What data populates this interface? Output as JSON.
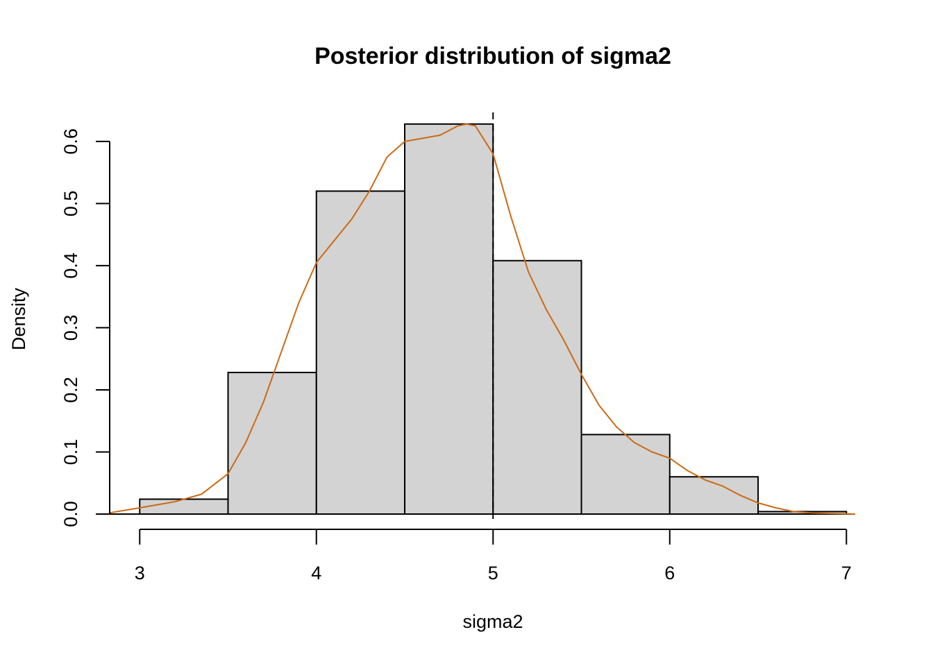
{
  "chart_data": {
    "type": "bar",
    "title": "Posterior distribution of sigma2",
    "xlabel": "sigma2",
    "ylabel": "Density",
    "xlim": [
      2.83,
      7.05
    ],
    "ylim": [
      0,
      0.63
    ],
    "xticks": [
      "3",
      "4",
      "5",
      "6",
      "7"
    ],
    "yticks": [
      "0.0",
      "0.1",
      "0.2",
      "0.3",
      "0.4",
      "0.5",
      "0.6"
    ],
    "bins": [
      {
        "from": 3.0,
        "to": 3.5,
        "density": 0.024
      },
      {
        "from": 3.5,
        "to": 4.0,
        "density": 0.228
      },
      {
        "from": 4.0,
        "to": 4.5,
        "density": 0.52
      },
      {
        "from": 4.5,
        "to": 5.0,
        "density": 0.628
      },
      {
        "from": 5.0,
        "to": 5.5,
        "density": 0.408
      },
      {
        "from": 5.5,
        "to": 6.0,
        "density": 0.128
      },
      {
        "from": 6.0,
        "to": 6.5,
        "density": 0.06
      },
      {
        "from": 6.5,
        "to": 7.0,
        "density": 0.004
      }
    ],
    "bar_color": "#d3d3d3",
    "density_curve": {
      "color": "#cc6a14",
      "x": [
        2.83,
        3.0,
        3.2,
        3.35,
        3.5,
        3.6,
        3.7,
        3.8,
        3.9,
        4.0,
        4.1,
        4.2,
        4.3,
        4.4,
        4.5,
        4.6,
        4.7,
        4.8,
        4.85,
        4.9,
        5.0,
        5.1,
        5.2,
        5.3,
        5.4,
        5.5,
        5.6,
        5.7,
        5.8,
        5.9,
        6.0,
        6.1,
        6.2,
        6.3,
        6.4,
        6.5,
        6.6,
        6.7,
        6.8,
        6.9,
        7.05
      ],
      "y": [
        0.002,
        0.01,
        0.02,
        0.032,
        0.065,
        0.115,
        0.18,
        0.26,
        0.34,
        0.405,
        0.44,
        0.475,
        0.52,
        0.575,
        0.6,
        0.605,
        0.61,
        0.625,
        0.628,
        0.625,
        0.58,
        0.48,
        0.39,
        0.33,
        0.28,
        0.225,
        0.175,
        0.14,
        0.115,
        0.1,
        0.09,
        0.07,
        0.055,
        0.045,
        0.03,
        0.018,
        0.01,
        0.004,
        0.002,
        0.001,
        0.0
      ]
    },
    "reference_line": {
      "x": 5.0,
      "style": "dashed"
    },
    "grid": false,
    "legend": "none"
  }
}
